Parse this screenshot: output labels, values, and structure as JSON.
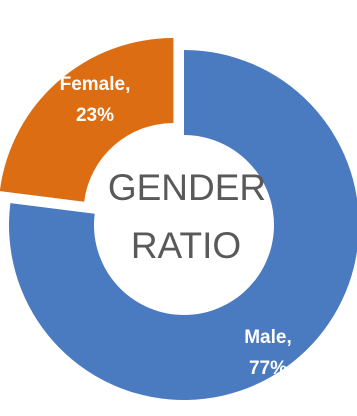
{
  "chart_data": {
    "type": "pie",
    "variant": "doughnut",
    "center_title_lines": [
      "GENDER",
      "RATIO"
    ],
    "slices": [
      {
        "name": "Male",
        "value": 77,
        "percent_label": "77%",
        "color": "#4a7ac0",
        "exploded": false
      },
      {
        "name": "Female",
        "value": 23,
        "percent_label": "23%",
        "color": "#dc6d12",
        "exploded": true
      }
    ],
    "legend": "none"
  }
}
